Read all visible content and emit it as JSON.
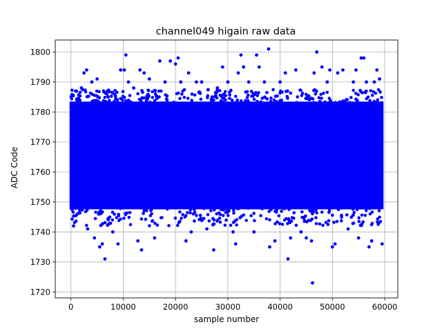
{
  "chart_data": {
    "type": "scatter",
    "title": "channel049 higain raw data",
    "xlabel": "sample number",
    "ylabel": "ADC Code",
    "xlim": [
      -3000,
      62500
    ],
    "ylim": [
      1718,
      1804
    ],
    "xticks": [
      0,
      10000,
      20000,
      30000,
      40000,
      50000,
      60000
    ],
    "xtick_labels": [
      "0",
      "10000",
      "20000",
      "30000",
      "40000",
      "50000",
      "60000"
    ],
    "yticks": [
      1720,
      1730,
      1740,
      1750,
      1760,
      1770,
      1780,
      1790,
      1800
    ],
    "ytick_labels": [
      "1720",
      "1730",
      "1740",
      "1750",
      "1760",
      "1770",
      "1780",
      "1790",
      "1800"
    ],
    "grid": true,
    "marker_color": "#0000ff",
    "series": [
      {
        "dense_band": {
          "x_range": [
            0,
            59500
          ],
          "y_range": [
            1748,
            1783
          ]
        },
        "outliers": [
          [
            500,
            1742
          ],
          [
            900,
            1787
          ],
          [
            2000,
            1788
          ],
          [
            2500,
            1793
          ],
          [
            3000,
            1794
          ],
          [
            3200,
            1741
          ],
          [
            4000,
            1790
          ],
          [
            4500,
            1738
          ],
          [
            5000,
            1791
          ],
          [
            5500,
            1735
          ],
          [
            6000,
            1736
          ],
          [
            6500,
            1731
          ],
          [
            7000,
            1787
          ],
          [
            8000,
            1740
          ],
          [
            9000,
            1736
          ],
          [
            9500,
            1794
          ],
          [
            10200,
            1794
          ],
          [
            10500,
            1799
          ],
          [
            11000,
            1790
          ],
          [
            12000,
            1788
          ],
          [
            12800,
            1737
          ],
          [
            13200,
            1794
          ],
          [
            13500,
            1734
          ],
          [
            14000,
            1793
          ],
          [
            15000,
            1791
          ],
          [
            16000,
            1738
          ],
          [
            17000,
            1797
          ],
          [
            18000,
            1790
          ],
          [
            19000,
            1797
          ],
          [
            20000,
            1796
          ],
          [
            20500,
            1798
          ],
          [
            21000,
            1790
          ],
          [
            22000,
            1737
          ],
          [
            22500,
            1793
          ],
          [
            23000,
            1740
          ],
          [
            24000,
            1790
          ],
          [
            25000,
            1790
          ],
          [
            26000,
            1741
          ],
          [
            27000,
            1785
          ],
          [
            27300,
            1734
          ],
          [
            28000,
            1788
          ],
          [
            29000,
            1795
          ],
          [
            30000,
            1790
          ],
          [
            31000,
            1740
          ],
          [
            31500,
            1736
          ],
          [
            32000,
            1793
          ],
          [
            32500,
            1799
          ],
          [
            33000,
            1795
          ],
          [
            34000,
            1790
          ],
          [
            35000,
            1740
          ],
          [
            35500,
            1799
          ],
          [
            36000,
            1795
          ],
          [
            37000,
            1790
          ],
          [
            37800,
            1801
          ],
          [
            38000,
            1735
          ],
          [
            39000,
            1737
          ],
          [
            40000,
            1790
          ],
          [
            41000,
            1793
          ],
          [
            41500,
            1731
          ],
          [
            42000,
            1738
          ],
          [
            43000,
            1794
          ],
          [
            44000,
            1740
          ],
          [
            45000,
            1738
          ],
          [
            46000,
            1737
          ],
          [
            46200,
            1723
          ],
          [
            46500,
            1793
          ],
          [
            47000,
            1800
          ],
          [
            48000,
            1795
          ],
          [
            49000,
            1790
          ],
          [
            49500,
            1794
          ],
          [
            50000,
            1735
          ],
          [
            50500,
            1736
          ],
          [
            51000,
            1793
          ],
          [
            52000,
            1794
          ],
          [
            53000,
            1741
          ],
          [
            54000,
            1790
          ],
          [
            54500,
            1794
          ],
          [
            55000,
            1738
          ],
          [
            55500,
            1798
          ],
          [
            56000,
            1798
          ],
          [
            56500,
            1790
          ],
          [
            57000,
            1735
          ],
          [
            57500,
            1737
          ],
          [
            58000,
            1790
          ],
          [
            58500,
            1794
          ],
          [
            59000,
            1791
          ],
          [
            59500,
            1736
          ]
        ]
      }
    ]
  }
}
